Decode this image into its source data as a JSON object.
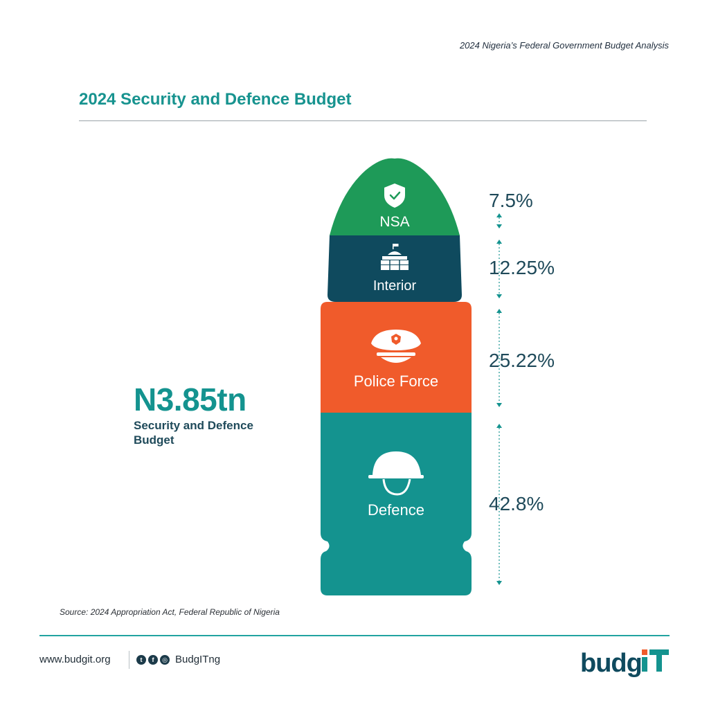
{
  "header": {
    "report_title": "2024 Nigeria’s Federal Government Budget Analysis",
    "page_title": "2024 Security and Defence Budget"
  },
  "summary": {
    "total_amount": "N3.85tn",
    "total_label": "Security and Defence Budget"
  },
  "chart_data": {
    "type": "bar",
    "categories": [
      "NSA",
      "Interior",
      "Police Force",
      "Defence"
    ],
    "values": [
      7.5,
      12.25,
      25.22,
      42.8
    ],
    "value_labels": [
      "7.5%",
      "12.25%",
      "25.22%",
      "42.8%"
    ],
    "unit": "%",
    "icons": [
      "shield-check-icon",
      "fort-building-icon",
      "police-cap-icon",
      "military-helmet-icon"
    ],
    "colors": [
      "#1e9a58",
      "#0f4a5e",
      "#f05b2b",
      "#14938f"
    ],
    "value_color": "#1f4a5a",
    "title": "",
    "xlabel": "",
    "ylabel": ""
  },
  "footer": {
    "source": "Source: 2024 Appropriation Act, Federal Republic of Nigeria",
    "url": "www.budgit.org",
    "social_icons": [
      "twitter-icon",
      "facebook-icon",
      "instagram-icon"
    ],
    "social_handle": "BudgITng",
    "logo_text": "budgIT"
  }
}
